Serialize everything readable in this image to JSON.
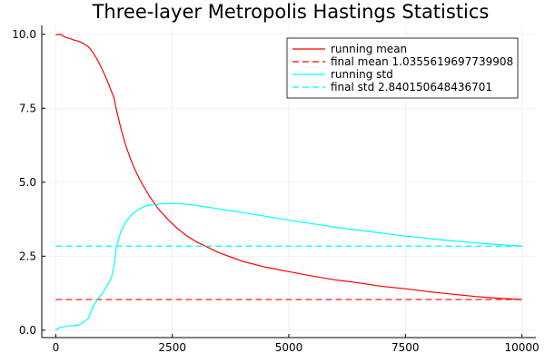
{
  "chart_data": {
    "type": "line",
    "title": "Three-layer Metropolis Hastings Statistics",
    "xlabel": "",
    "ylabel": "",
    "xlim": [
      -300,
      10300
    ],
    "ylim": [
      -0.25,
      10.3
    ],
    "x_ticks": [
      0,
      2500,
      5000,
      7500,
      10000
    ],
    "x_tick_labels": [
      "0",
      "2500",
      "5000",
      "7500",
      "10000"
    ],
    "y_ticks": [
      0.0,
      2.5,
      5.0,
      7.5,
      10.0
    ],
    "y_tick_labels": [
      "0.0",
      "2.5",
      "5.0",
      "7.5",
      "10.0"
    ],
    "grid": true,
    "legend_position": "top-right",
    "series": [
      {
        "name": "running mean",
        "style": "solid",
        "color": "#ff0000",
        "points": [
          [
            0,
            9.98
          ],
          [
            100,
            10.0
          ],
          [
            200,
            9.9
          ],
          [
            300,
            9.86
          ],
          [
            400,
            9.8
          ],
          [
            500,
            9.76
          ],
          [
            600,
            9.68
          ],
          [
            700,
            9.58
          ],
          [
            800,
            9.38
          ],
          [
            900,
            9.12
          ],
          [
            1000,
            8.8
          ],
          [
            1100,
            8.45
          ],
          [
            1200,
            8.05
          ],
          [
            1250,
            7.85
          ],
          [
            1300,
            7.45
          ],
          [
            1400,
            6.8
          ],
          [
            1500,
            6.25
          ],
          [
            1600,
            5.8
          ],
          [
            1700,
            5.42
          ],
          [
            1800,
            5.1
          ],
          [
            1900,
            4.82
          ],
          [
            2000,
            4.55
          ],
          [
            2200,
            4.1
          ],
          [
            2400,
            3.75
          ],
          [
            2600,
            3.45
          ],
          [
            2800,
            3.2
          ],
          [
            3000,
            3.0
          ],
          [
            3500,
            2.62
          ],
          [
            4000,
            2.33
          ],
          [
            4500,
            2.13
          ],
          [
            5000,
            1.98
          ],
          [
            5500,
            1.83
          ],
          [
            6000,
            1.7
          ],
          [
            6500,
            1.6
          ],
          [
            7000,
            1.48
          ],
          [
            7500,
            1.4
          ],
          [
            8000,
            1.3
          ],
          [
            8500,
            1.22
          ],
          [
            9000,
            1.14
          ],
          [
            9500,
            1.08
          ],
          [
            10000,
            1.04
          ]
        ]
      },
      {
        "name": "final mean 1.0355619697739908",
        "style": "dashed",
        "color": "#ff0000",
        "points": [
          [
            0,
            1.0355619697739908
          ],
          [
            10000,
            1.0355619697739908
          ]
        ]
      },
      {
        "name": "running std",
        "style": "solid",
        "color": "#00ffff",
        "points": [
          [
            0,
            0.0
          ],
          [
            50,
            0.05
          ],
          [
            100,
            0.1
          ],
          [
            200,
            0.12
          ],
          [
            300,
            0.15
          ],
          [
            400,
            0.15
          ],
          [
            500,
            0.18
          ],
          [
            600,
            0.28
          ],
          [
            700,
            0.4
          ],
          [
            800,
            0.8
          ],
          [
            900,
            1.05
          ],
          [
            1000,
            1.25
          ],
          [
            1100,
            1.5
          ],
          [
            1200,
            1.8
          ],
          [
            1250,
            2.2
          ],
          [
            1300,
            2.8
          ],
          [
            1400,
            3.35
          ],
          [
            1500,
            3.65
          ],
          [
            1600,
            3.85
          ],
          [
            1700,
            4.0
          ],
          [
            1800,
            4.1
          ],
          [
            1900,
            4.18
          ],
          [
            2000,
            4.22
          ],
          [
            2200,
            4.26
          ],
          [
            2400,
            4.28
          ],
          [
            2600,
            4.28
          ],
          [
            2800,
            4.26
          ],
          [
            3000,
            4.22
          ],
          [
            3500,
            4.1
          ],
          [
            4000,
            3.98
          ],
          [
            4500,
            3.85
          ],
          [
            5000,
            3.72
          ],
          [
            5500,
            3.6
          ],
          [
            6000,
            3.48
          ],
          [
            6500,
            3.38
          ],
          [
            7000,
            3.28
          ],
          [
            7500,
            3.18
          ],
          [
            8000,
            3.1
          ],
          [
            8500,
            3.02
          ],
          [
            9000,
            2.95
          ],
          [
            9500,
            2.89
          ],
          [
            10000,
            2.84
          ]
        ]
      },
      {
        "name": "final std 2.840150648436701",
        "style": "dashed",
        "color": "#00ffff",
        "points": [
          [
            0,
            2.840150648436701
          ],
          [
            10000,
            2.840150648436701
          ]
        ]
      }
    ]
  }
}
